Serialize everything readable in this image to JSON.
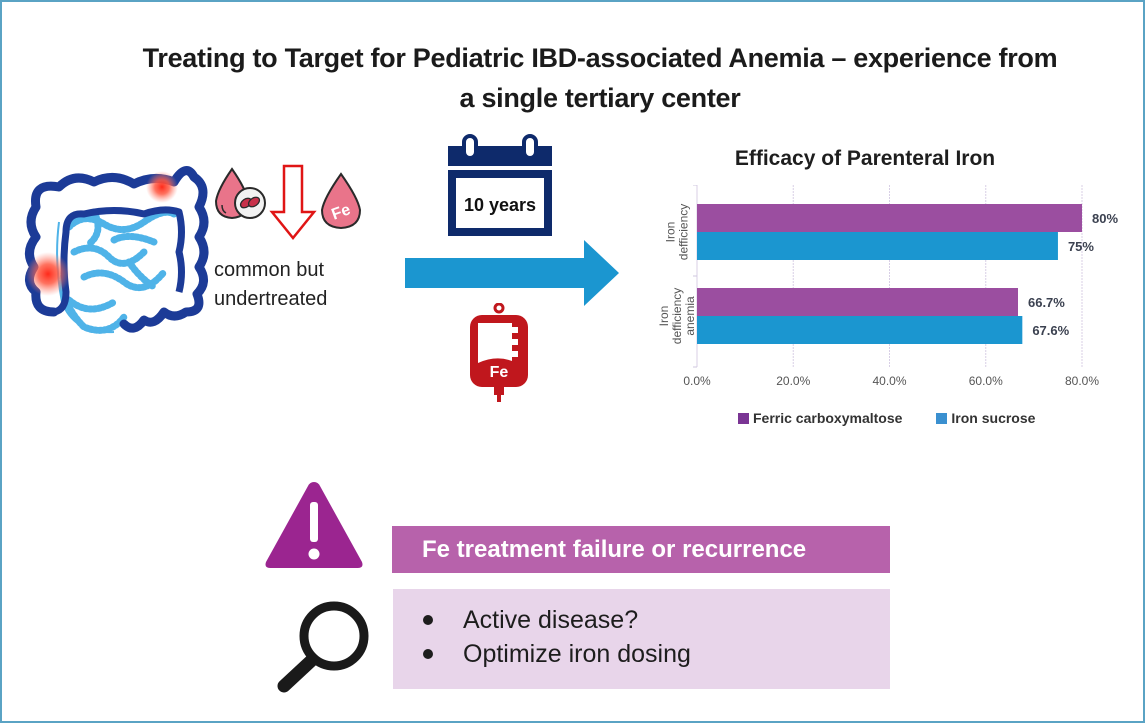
{
  "header": {
    "title_line1": "Treating to Target for Pediatric IBD-associated Anemia – experience from",
    "title_line2": "a single tertiary center"
  },
  "left_panel": {
    "caption_line1": "common but",
    "caption_line2": "undertreated",
    "icons": [
      "intestine-inflammation-icon",
      "blood-drop-rbc-icon",
      "down-arrow-icon",
      "iron-drop-icon"
    ],
    "iron_drop_label": "Fe"
  },
  "middle_panel": {
    "calendar_label": "10 years",
    "iv_bag_label": "Fe"
  },
  "colors": {
    "fcm": "#9b4ea0",
    "sucrose": "#1b96d0",
    "warning": "#b762ab",
    "checklist_bg": "#e8d5ea",
    "navy": "#0e2a6b",
    "iv_red": "#c0171d",
    "frame": "#5aa3c4"
  },
  "chart_data": {
    "type": "bar",
    "orientation": "horizontal",
    "title": "Efficacy of Parenteral Iron",
    "categories": [
      "Iron defficiency",
      "Iron defficiency anemia"
    ],
    "category_lines": [
      [
        "Iron",
        "defficiency"
      ],
      [
        "Iron",
        "defficiency",
        "anemia"
      ]
    ],
    "series": [
      {
        "name": "Ferric carboxymaltose",
        "values": [
          80,
          66.7
        ],
        "labels": [
          "80%",
          "66.7%"
        ]
      },
      {
        "name": "Iron sucrose",
        "values": [
          75,
          67.6
        ],
        "labels": [
          "75%",
          "67.6%"
        ]
      }
    ],
    "xlim": [
      0,
      80
    ],
    "xticks": [
      "0.0%",
      "20.0%",
      "40.0%",
      "60.0%",
      "80.0%"
    ],
    "xtick_values": [
      0,
      20,
      40,
      60,
      80
    ],
    "xlabel": "",
    "ylabel": "",
    "grid": true,
    "legend_position": "bottom"
  },
  "bottom_panel": {
    "warning_text": "Fe treatment failure or recurrence",
    "checklist": [
      "Active disease?",
      "Optimize iron dosing"
    ]
  }
}
